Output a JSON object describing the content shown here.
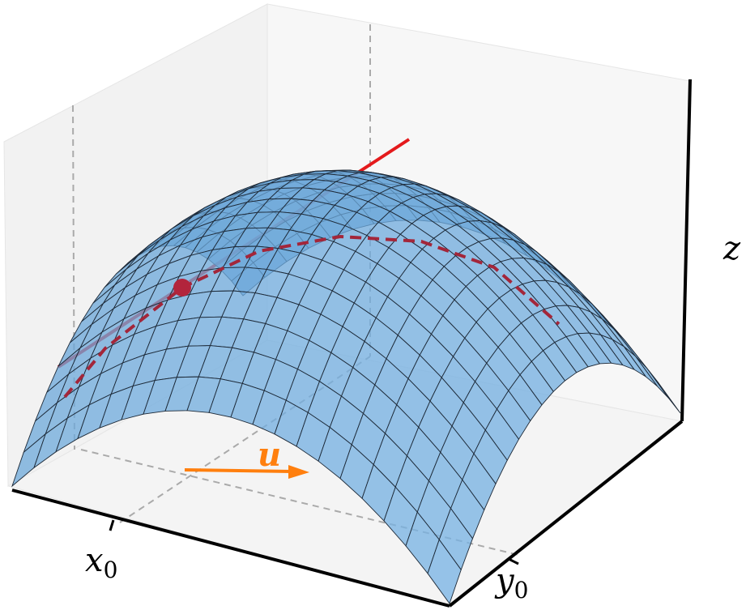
{
  "labels": {
    "z_axis": "z",
    "x_point": {
      "symbol": "x",
      "subscript": "0"
    },
    "y_point": {
      "symbol": "y",
      "subscript": "0"
    },
    "direction": "u"
  }
}
